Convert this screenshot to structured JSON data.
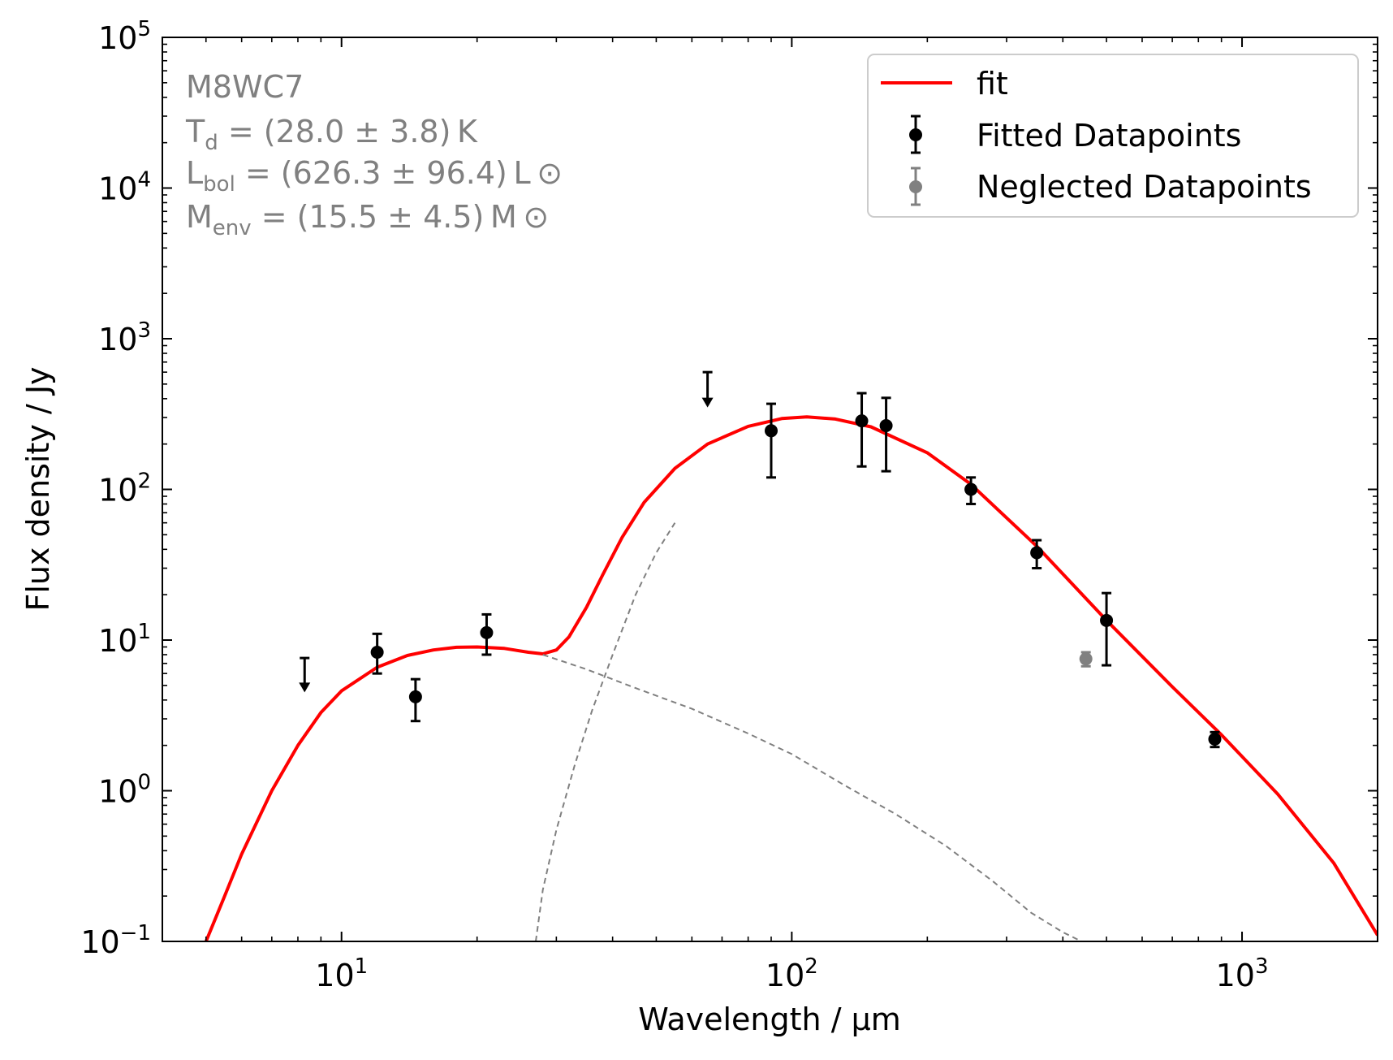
{
  "chart_data": {
    "type": "scatter",
    "title": "",
    "xlabel": "Wavelength / μm",
    "ylabel": "Flux density / Jy",
    "xscale": "log",
    "yscale": "log",
    "xlim": [
      4.0,
      2000.0
    ],
    "ylim": [
      0.1,
      100000.0
    ],
    "grid": false,
    "legend_position": "top-right",
    "x_ticks": [
      {
        "value": 10,
        "base": "10",
        "exp": "1"
      },
      {
        "value": 100,
        "base": "10",
        "exp": "2"
      },
      {
        "value": 1000,
        "base": "10",
        "exp": "3"
      }
    ],
    "y_ticks": [
      {
        "value": 0.1,
        "base": "10",
        "exp": "−1"
      },
      {
        "value": 1,
        "base": "10",
        "exp": "0"
      },
      {
        "value": 10,
        "base": "10",
        "exp": "1"
      },
      {
        "value": 100,
        "base": "10",
        "exp": "2"
      },
      {
        "value": 1000,
        "base": "10",
        "exp": "3"
      },
      {
        "value": 10000,
        "base": "10",
        "exp": "4"
      },
      {
        "value": 100000,
        "base": "10",
        "exp": "5"
      }
    ],
    "annotation": {
      "source_name": "M8WC7",
      "temperature": {
        "symbol": "T",
        "sub": "d",
        "text": " = (28.0 ± 3.8) K"
      },
      "luminosity": {
        "symbol": "L",
        "sub": "bol",
        "text": " = (626.3 ± 96.4) L ⊙"
      },
      "envelope_mass": {
        "symbol": "M",
        "sub": "env",
        "text": " = (15.5 ± 4.5) M ⊙"
      }
    },
    "legend": [
      {
        "label": "fit",
        "kind": "line"
      },
      {
        "label": "Fitted Datapoints",
        "kind": "errorbar"
      },
      {
        "label": "Neglected Datapoints",
        "kind": "errorbar-grey"
      }
    ],
    "series": [
      {
        "name": "fit",
        "kind": "line",
        "x": [
          5.0,
          5.5,
          6.0,
          7.0,
          8.0,
          9.0,
          10.0,
          12.0,
          14.0,
          16.0,
          18.0,
          20.0,
          23.0,
          26.0,
          28.0,
          30.0,
          32.0,
          35.0,
          38.0,
          42.0,
          47.0,
          55.0,
          65.0,
          80.0,
          95.0,
          108.0,
          125.0,
          150.0,
          200.0,
          250.0,
          350.0,
          500.0,
          700.0,
          900.0,
          1200.0,
          1600.0,
          2000.0
        ],
        "y": [
          0.1,
          0.2,
          0.38,
          1.0,
          2.0,
          3.3,
          4.6,
          6.6,
          7.9,
          8.6,
          8.95,
          9.0,
          8.8,
          8.3,
          8.1,
          8.6,
          10.5,
          16.5,
          27.0,
          48.0,
          82.0,
          138.0,
          200.0,
          262.0,
          295.0,
          303.0,
          293.0,
          260.0,
          175.0,
          108.0,
          42.0,
          13.5,
          4.9,
          2.35,
          0.95,
          0.33,
          0.11
        ]
      },
      {
        "name": "warm component",
        "kind": "dashed",
        "x": [
          28.0,
          35.0,
          45.0,
          60.0,
          80.0,
          100.0,
          130.0,
          170.0,
          220.0,
          280.0,
          340.0,
          400.0,
          440.0
        ],
        "y": [
          8.0,
          6.4,
          4.8,
          3.5,
          2.4,
          1.75,
          1.1,
          0.7,
          0.43,
          0.25,
          0.155,
          0.115,
          0.1
        ]
      },
      {
        "name": "cold component",
        "kind": "dashed",
        "x": [
          27.0,
          28.0,
          30.0,
          33.0,
          36.0,
          40.0,
          45.0,
          50.0,
          55.0
        ],
        "y": [
          0.1,
          0.22,
          0.55,
          1.5,
          3.4,
          8.0,
          20.0,
          38.0,
          60.0
        ]
      },
      {
        "name": "Fitted Datapoints",
        "kind": "errorbar",
        "points": [
          {
            "x": 12.0,
            "y": 8.3,
            "ylo": 6.0,
            "yhi": 11.0
          },
          {
            "x": 14.6,
            "y": 4.2,
            "ylo": 2.9,
            "yhi": 5.5
          },
          {
            "x": 21.0,
            "y": 11.2,
            "ylo": 8.0,
            "yhi": 14.8
          },
          {
            "x": 90.0,
            "y": 245.0,
            "ylo": 120.0,
            "yhi": 370.0
          },
          {
            "x": 143.0,
            "y": 285.0,
            "ylo": 142.0,
            "yhi": 435.0
          },
          {
            "x": 162.0,
            "y": 265.0,
            "ylo": 132.0,
            "yhi": 405.0
          },
          {
            "x": 250.0,
            "y": 100.0,
            "ylo": 80.0,
            "yhi": 120.0
          },
          {
            "x": 350.0,
            "y": 38.0,
            "ylo": 30.0,
            "yhi": 46.0
          },
          {
            "x": 500.0,
            "y": 13.5,
            "ylo": 6.8,
            "yhi": 20.5
          },
          {
            "x": 870.0,
            "y": 2.2,
            "ylo": 1.95,
            "yhi": 2.45
          }
        ]
      },
      {
        "name": "upper limits",
        "kind": "upper-limit",
        "points": [
          {
            "x": 8.28,
            "y": 7.6,
            "arrow_to": 4.5
          },
          {
            "x": 65.0,
            "y": 600.0,
            "arrow_to": 350.0
          }
        ]
      },
      {
        "name": "Neglected Datapoints",
        "kind": "errorbar-grey",
        "points": [
          {
            "x": 450.0,
            "y": 7.5,
            "ylo": 6.7,
            "yhi": 8.3
          }
        ]
      }
    ]
  }
}
